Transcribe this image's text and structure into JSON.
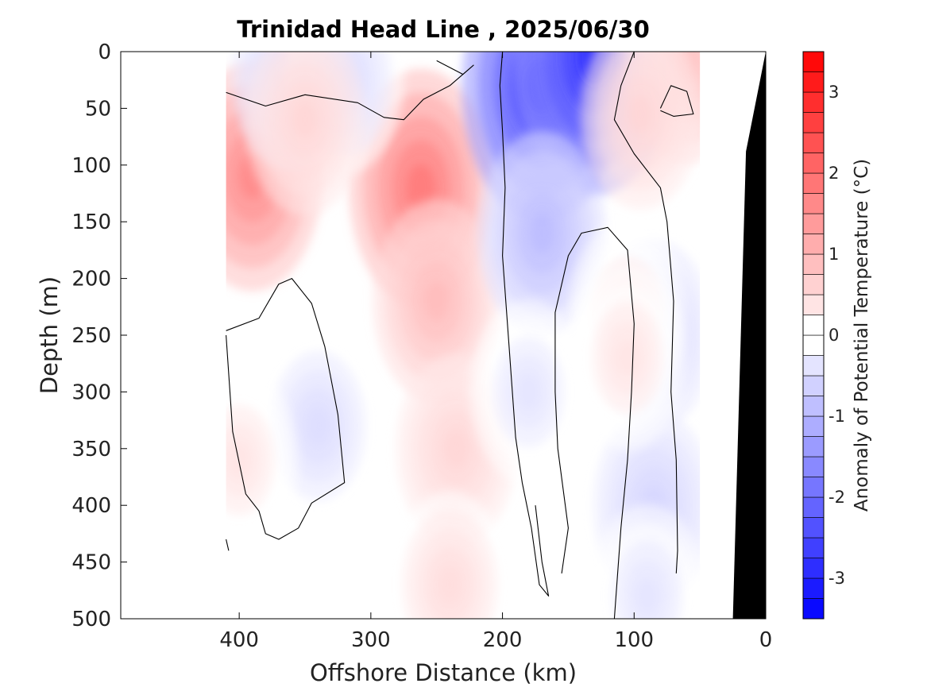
{
  "chart_data": {
    "type": "heatmap",
    "subtype": "filled-contour section with colorbar",
    "title": "Trinidad Head Line , 2025/06/30",
    "xlabel": "Offshore Distance (km)",
    "ylabel": "Depth (m)",
    "colorbar_label": "Anomaly of Potential Temperature (°C)",
    "xlim": [
      490,
      0
    ],
    "x_reversed": true,
    "ylim": [
      0,
      500
    ],
    "y_reversed": true,
    "x_ticks": [
      400,
      300,
      200,
      100,
      0
    ],
    "y_ticks": [
      0,
      50,
      100,
      150,
      200,
      250,
      300,
      350,
      400,
      450,
      500
    ],
    "colorbar_range": [
      -3.5,
      3.5
    ],
    "colorbar_step": 0.25,
    "colorbar_ticks": [
      -3,
      -2,
      -1,
      0,
      1,
      2,
      3
    ],
    "grid": false,
    "data_extent_x": [
      410,
      50
    ],
    "colors": {
      "negative_max": "#0000ff",
      "positive_max": "#ff0000",
      "neutral": "#ffffff",
      "bathymetry": "#000000",
      "contour": "#000000"
    },
    "anomaly_features": [
      {
        "x": 390,
        "depth": 110,
        "value": 1.75
      },
      {
        "x": 262,
        "depth": 120,
        "value": 2.0
      },
      {
        "x": 250,
        "depth": 220,
        "value": 1.0
      },
      {
        "x": 235,
        "depth": 350,
        "value": 0.6
      },
      {
        "x": 240,
        "depth": 470,
        "value": 0.5
      },
      {
        "x": 170,
        "depth": 30,
        "value": -3.0
      },
      {
        "x": 130,
        "depth": 5,
        "value": -3.1
      },
      {
        "x": 170,
        "depth": 160,
        "value": -1.0
      },
      {
        "x": 180,
        "depth": 300,
        "value": -0.4
      },
      {
        "x": 340,
        "depth": 330,
        "value": -0.5
      },
      {
        "x": 360,
        "depth": 20,
        "value": -0.6
      },
      {
        "x": 320,
        "depth": 25,
        "value": -0.5
      },
      {
        "x": 85,
        "depth": 250,
        "value": -0.6
      },
      {
        "x": 85,
        "depth": 400,
        "value": -0.6
      },
      {
        "x": 90,
        "depth": 480,
        "value": -0.4
      },
      {
        "x": 60,
        "depth": 10,
        "value": 0.9
      },
      {
        "x": 95,
        "depth": 55,
        "value": 0.6
      },
      {
        "x": 350,
        "depth": 60,
        "value": 0.6
      },
      {
        "x": 400,
        "depth": 360,
        "value": 0.4
      },
      {
        "x": 105,
        "depth": 230,
        "value": 0.4
      },
      {
        "x": 105,
        "depth": 270,
        "value": 0.4
      }
    ],
    "zero_contours": [
      [
        [
          410,
          36
        ],
        [
          380,
          48
        ],
        [
          350,
          38
        ],
        [
          310,
          45
        ],
        [
          290,
          58
        ],
        [
          275,
          60
        ],
        [
          260,
          42
        ],
        [
          240,
          30
        ],
        [
          222,
          12
        ],
        [
          230,
          20
        ],
        [
          250,
          8
        ]
      ],
      [
        [
          200,
          0
        ],
        [
          202,
          30
        ],
        [
          200,
          70
        ],
        [
          198,
          120
        ],
        [
          200,
          180
        ],
        [
          195,
          260
        ],
        [
          190,
          340
        ],
        [
          185,
          380
        ],
        [
          178,
          420
        ],
        [
          172,
          470
        ],
        [
          165,
          480
        ],
        [
          170,
          450
        ],
        [
          175,
          400
        ]
      ],
      [
        [
          100,
          0
        ],
        [
          110,
          30
        ],
        [
          115,
          60
        ],
        [
          100,
          90
        ],
        [
          80,
          120
        ],
        [
          75,
          150
        ],
        [
          70,
          220
        ],
        [
          72,
          300
        ],
        [
          68,
          360
        ],
        [
          67,
          440
        ],
        [
          68,
          460
        ]
      ],
      [
        [
          410,
          246
        ],
        [
          385,
          235
        ],
        [
          370,
          205
        ],
        [
          360,
          200
        ],
        [
          345,
          222
        ],
        [
          335,
          260
        ],
        [
          325,
          320
        ],
        [
          320,
          380
        ],
        [
          345,
          398
        ],
        [
          355,
          420
        ],
        [
          370,
          430
        ],
        [
          380,
          425
        ],
        [
          385,
          405
        ],
        [
          395,
          390
        ],
        [
          405,
          335
        ],
        [
          410,
          250
        ]
      ],
      [
        [
          155,
          460
        ],
        [
          150,
          420
        ],
        [
          158,
          350
        ],
        [
          160,
          300
        ],
        [
          160,
          230
        ],
        [
          150,
          180
        ],
        [
          140,
          160
        ],
        [
          120,
          155
        ],
        [
          105,
          175
        ],
        [
          100,
          240
        ],
        [
          102,
          300
        ],
        [
          105,
          360
        ],
        [
          110,
          420
        ],
        [
          115,
          500
        ]
      ],
      [
        [
          80,
          50
        ],
        [
          72,
          30
        ],
        [
          60,
          35
        ],
        [
          55,
          55
        ],
        [
          70,
          57
        ],
        [
          80,
          52
        ]
      ],
      [
        [
          410,
          430
        ],
        [
          408,
          440
        ]
      ]
    ],
    "bathymetry_profile": [
      [
        25,
        500
      ],
      [
        15,
        88
      ],
      [
        0,
        0
      ]
    ]
  }
}
